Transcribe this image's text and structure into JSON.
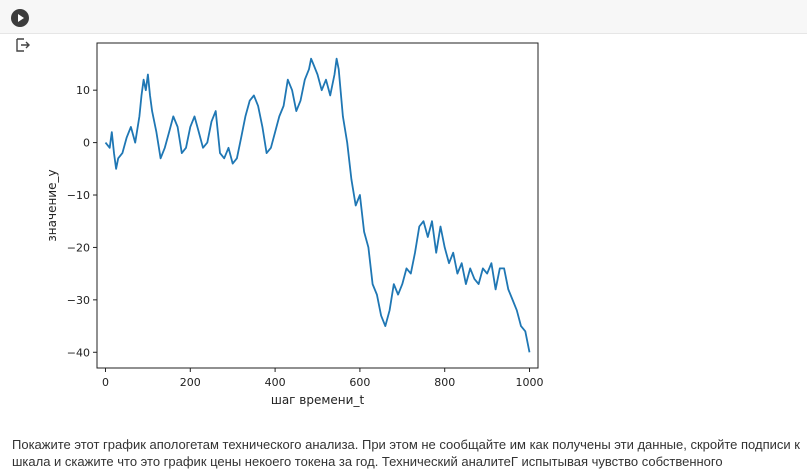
{
  "toolbar": {
    "run_icon": "play-icon"
  },
  "output": {
    "icon": "output-icon"
  },
  "chart_data": {
    "type": "line",
    "title": "",
    "xlabel": "шаг времени_t",
    "ylabel": "значение_y",
    "xlim": [
      -20,
      1020
    ],
    "ylim": [
      -43,
      19
    ],
    "xticks": [
      0,
      200,
      400,
      600,
      800,
      1000
    ],
    "yticks": [
      -40,
      -30,
      -20,
      -10,
      0,
      10
    ],
    "grid": false,
    "color": "#1f77b4",
    "series": [
      {
        "x": [
          0,
          10,
          15,
          20,
          25,
          30,
          40,
          50,
          60,
          70,
          80,
          85,
          90,
          95,
          100,
          105,
          110,
          120,
          130,
          140,
          150,
          160,
          170,
          180,
          190,
          200,
          210,
          220,
          230,
          240,
          250,
          260,
          270,
          280,
          290,
          300,
          310,
          320,
          330,
          340,
          350,
          360,
          370,
          380,
          390,
          400,
          410,
          420,
          430,
          440,
          450,
          460,
          470,
          480,
          485,
          490,
          500,
          510,
          520,
          530,
          540,
          545,
          550,
          560,
          570,
          580,
          590,
          600,
          610,
          620,
          630,
          640,
          650,
          660,
          670,
          680,
          690,
          700,
          710,
          720,
          730,
          740,
          750,
          760,
          770,
          780,
          790,
          800,
          810,
          820,
          830,
          840,
          850,
          860,
          870,
          880,
          890,
          900,
          910,
          920,
          930,
          940,
          950,
          960,
          970,
          980,
          990,
          1000
        ],
        "y": [
          0,
          -1,
          2,
          -2,
          -5,
          -3,
          -2,
          1,
          3,
          0,
          5,
          9,
          12,
          10,
          13,
          9,
          6,
          2,
          -3,
          -1,
          2,
          5,
          3,
          -2,
          -1,
          3,
          5,
          2,
          -1,
          0,
          4,
          6,
          -2,
          -3,
          -1,
          -4,
          -3,
          1,
          5,
          8,
          9,
          7,
          3,
          -2,
          -1,
          2,
          5,
          7,
          12,
          10,
          6,
          8,
          12,
          14,
          16,
          15,
          13,
          10,
          12,
          9,
          13,
          16,
          14,
          5,
          0,
          -7,
          -12,
          -10,
          -17,
          -20,
          -27,
          -29,
          -33,
          -35,
          -32,
          -27,
          -29,
          -27,
          -24,
          -25,
          -21,
          -16,
          -15,
          -18,
          -15,
          -21,
          -16,
          -20,
          -23,
          -21,
          -25,
          -23,
          -27,
          -24,
          -26,
          -27,
          -24,
          -25,
          -23,
          -28,
          -24,
          -24,
          -28,
          -30,
          -32,
          -35,
          -36,
          -40
        ]
      }
    ]
  },
  "caption": {
    "line1": "Покажите этот график апологетам технического анализа. При этом не сообщайте им как получены эти данные, скройте подписи к",
    "line2": "шкала и скажите что это график цены некоего токена за год. Технический аналитеГ испытывая чувство собственного"
  }
}
